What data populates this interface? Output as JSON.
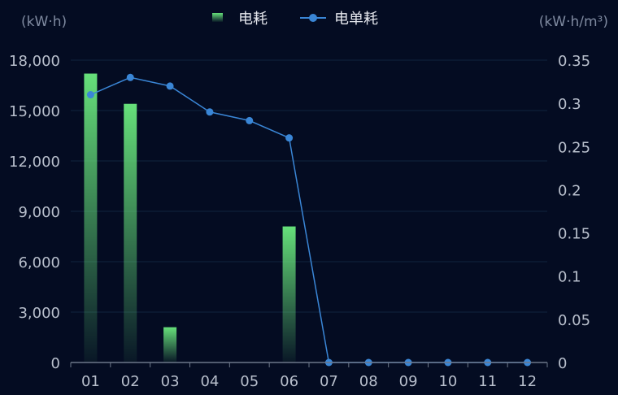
{
  "chart_data": {
    "type": "bar+line",
    "categories": [
      "01",
      "02",
      "03",
      "04",
      "05",
      "06",
      "07",
      "08",
      "09",
      "10",
      "11",
      "12"
    ],
    "series": [
      {
        "name": "电耗",
        "type": "bar",
        "axis": "left",
        "values": [
          17200,
          15400,
          2100,
          0,
          0,
          8100,
          0,
          0,
          0,
          0,
          0,
          0
        ],
        "color": "#5fd96f"
      },
      {
        "name": "电单耗",
        "type": "line",
        "axis": "right",
        "values": [
          0.31,
          0.33,
          0.32,
          0.29,
          0.28,
          0.26,
          0,
          0,
          0,
          0,
          0,
          0
        ],
        "color": "#3a86d6"
      }
    ],
    "left_axis": {
      "unit": "(kW·h)",
      "ylim": [
        0,
        18000
      ],
      "ticks": [
        "0",
        "3,000",
        "6,000",
        "9,000",
        "12,000",
        "15,000",
        "18,000"
      ]
    },
    "right_axis": {
      "unit": "(kW·h/m³)",
      "ylim": [
        0,
        0.35
      ],
      "ticks": [
        "0",
        "0.05",
        "0.1",
        "0.15",
        "0.2",
        "0.25",
        "0.3",
        "0.35"
      ]
    },
    "legend": {
      "placement": "top-center",
      "items": [
        "电耗",
        "电单耗"
      ]
    },
    "grid": true,
    "background": "#040c22"
  }
}
